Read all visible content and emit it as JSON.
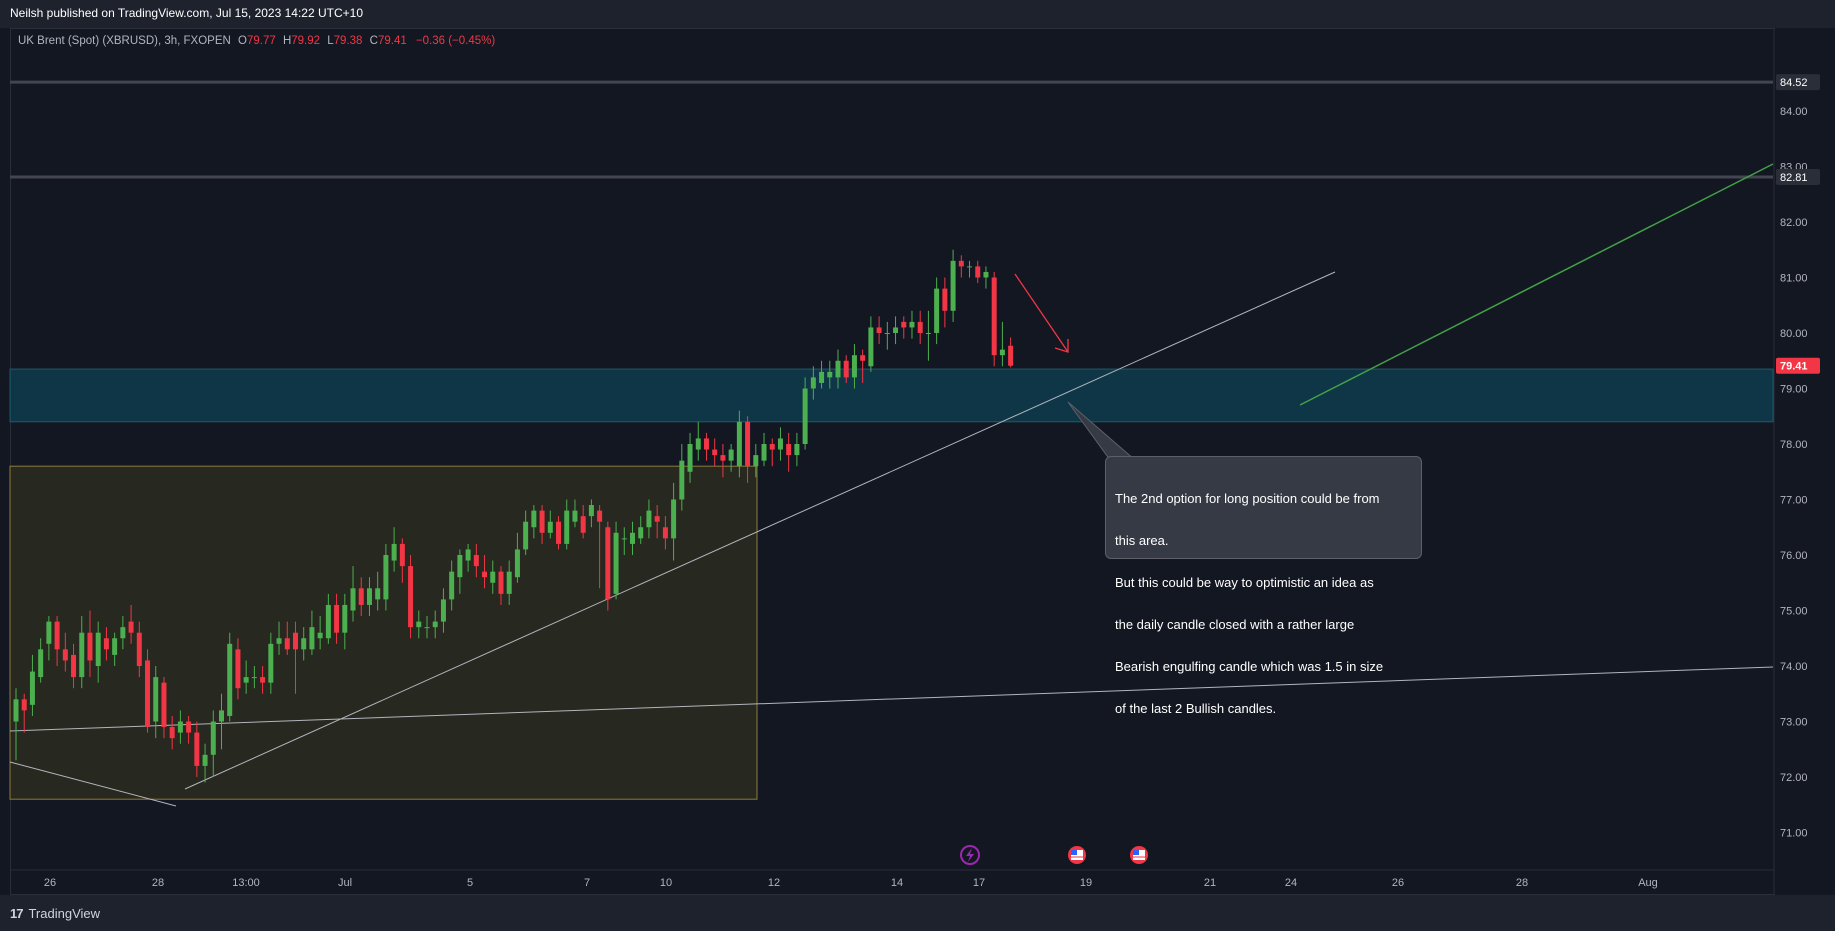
{
  "header": {
    "published": "Neilsh published on TradingView.com, Jul 15, 2023 14:22 UTC+10"
  },
  "symbol": {
    "name": "UK Brent (Spot) (XBRUSD), 3h, FXOPEN",
    "open_label": "O",
    "open": "79.77",
    "high_label": "H",
    "high": "79.92",
    "low_label": "L",
    "low": "79.38",
    "close_label": "C",
    "close": "79.41",
    "change": "−0.36 (−0.45%)"
  },
  "price_axis": {
    "ticks": [
      "84.00",
      "83.00",
      "82.00",
      "81.00",
      "80.00",
      "79.00",
      "78.00",
      "77.00",
      "76.00",
      "75.00",
      "74.00",
      "73.00",
      "72.00",
      "71.00"
    ],
    "levels": [
      {
        "label": "84.52",
        "color": "#787b86"
      },
      {
        "label": "82.81",
        "color": "#787b86"
      },
      {
        "label": "79.41",
        "color": "#f23645"
      }
    ]
  },
  "time_axis": {
    "ticks": [
      "26",
      "28",
      "13:00",
      "Jul",
      "5",
      "7",
      "10",
      "12",
      "14",
      "17",
      "19",
      "21",
      "24",
      "26",
      "28",
      "Aug"
    ]
  },
  "annotation": {
    "lines": [
      "The 2nd option for long position could be from",
      "this area.",
      "But this could be way to optimistic an idea as",
      "the daily candle closed with a rather large",
      "Bearish engulfing candle which was 1.5 in size",
      "of the last 2 Bullish candles."
    ]
  },
  "events": [
    {
      "icon": "lightning-icon",
      "color": "#9c27b0"
    },
    {
      "icon": "us-flag-icon",
      "color": "#f23645"
    },
    {
      "icon": "us-flag-icon",
      "color": "#f23645"
    }
  ],
  "footer": {
    "brand": "TradingView"
  },
  "chart_data": {
    "type": "candlestick",
    "timeframe": "3h",
    "y_range": [
      70.5,
      85.2
    ],
    "candle_colors": {
      "up": "#4caf50",
      "down": "#f23645"
    },
    "zones": [
      {
        "kind": "resistance",
        "from": 78.4,
        "to": 79.35,
        "color": "#0e3a4a"
      },
      {
        "kind": "range-box",
        "from": 71.6,
        "to": 77.6,
        "color": "#2a2a1f"
      }
    ],
    "horizontal_levels": [
      84.52,
      82.81
    ],
    "candles": [
      {
        "o": 73.0,
        "c": 73.4,
        "h": 73.6,
        "l": 72.3
      },
      {
        "o": 73.4,
        "c": 73.2,
        "h": 73.5,
        "l": 72.8
      },
      {
        "o": 73.3,
        "c": 73.9,
        "h": 74.2,
        "l": 73.1
      },
      {
        "o": 73.8,
        "c": 74.3,
        "h": 74.5,
        "l": 73.7
      },
      {
        "o": 74.4,
        "c": 74.8,
        "h": 74.9,
        "l": 74.1
      },
      {
        "o": 74.8,
        "c": 74.3,
        "h": 74.9,
        "l": 74.0
      },
      {
        "o": 74.3,
        "c": 74.1,
        "h": 74.6,
        "l": 73.9
      },
      {
        "o": 74.2,
        "c": 73.8,
        "h": 74.4,
        "l": 73.6
      },
      {
        "o": 73.8,
        "c": 74.6,
        "h": 74.9,
        "l": 73.6
      },
      {
        "o": 74.6,
        "c": 74.1,
        "h": 75.0,
        "l": 73.8
      },
      {
        "o": 74.0,
        "c": 74.6,
        "h": 74.8,
        "l": 73.7
      },
      {
        "o": 74.5,
        "c": 74.3,
        "h": 74.7,
        "l": 74.1
      },
      {
        "o": 74.2,
        "c": 74.5,
        "h": 74.6,
        "l": 74.0
      },
      {
        "o": 74.5,
        "c": 74.7,
        "h": 74.9,
        "l": 74.3
      },
      {
        "o": 74.8,
        "c": 74.6,
        "h": 75.1,
        "l": 74.4
      },
      {
        "o": 74.6,
        "c": 74.0,
        "h": 74.8,
        "l": 73.8
      },
      {
        "o": 74.1,
        "c": 72.9,
        "h": 74.3,
        "l": 72.8
      },
      {
        "o": 73.0,
        "c": 73.8,
        "h": 74.0,
        "l": 72.7
      },
      {
        "o": 73.7,
        "c": 72.9,
        "h": 73.8,
        "l": 72.7
      },
      {
        "o": 72.9,
        "c": 72.7,
        "h": 73.1,
        "l": 72.5
      },
      {
        "o": 72.8,
        "c": 73.0,
        "h": 73.2,
        "l": 72.6
      },
      {
        "o": 73.0,
        "c": 72.8,
        "h": 73.1,
        "l": 72.6
      },
      {
        "o": 72.8,
        "c": 72.2,
        "h": 73.0,
        "l": 72.0
      },
      {
        "o": 72.2,
        "c": 72.4,
        "h": 72.6,
        "l": 71.9
      },
      {
        "o": 72.4,
        "c": 73.0,
        "h": 73.2,
        "l": 72.0
      },
      {
        "o": 73.0,
        "c": 73.2,
        "h": 73.5,
        "l": 72.5
      },
      {
        "o": 73.1,
        "c": 74.4,
        "h": 74.6,
        "l": 73.0
      },
      {
        "o": 74.3,
        "c": 73.6,
        "h": 74.5,
        "l": 73.4
      },
      {
        "o": 73.7,
        "c": 73.8,
        "h": 74.1,
        "l": 73.5
      },
      {
        "o": 73.8,
        "c": 73.8,
        "h": 74.0,
        "l": 73.6
      },
      {
        "o": 73.8,
        "c": 73.7,
        "h": 74.0,
        "l": 73.5
      },
      {
        "o": 73.7,
        "c": 74.4,
        "h": 74.6,
        "l": 73.5
      },
      {
        "o": 74.4,
        "c": 74.5,
        "h": 74.8,
        "l": 74.2
      },
      {
        "o": 74.5,
        "c": 74.3,
        "h": 74.8,
        "l": 74.2
      },
      {
        "o": 74.6,
        "c": 74.3,
        "h": 74.8,
        "l": 73.5
      },
      {
        "o": 74.3,
        "c": 74.5,
        "h": 74.7,
        "l": 74.1
      },
      {
        "o": 74.3,
        "c": 74.7,
        "h": 75.0,
        "l": 74.2
      },
      {
        "o": 74.5,
        "c": 74.6,
        "h": 74.9,
        "l": 74.3
      },
      {
        "o": 74.5,
        "c": 75.1,
        "h": 75.3,
        "l": 74.4
      },
      {
        "o": 75.1,
        "c": 74.6,
        "h": 75.3,
        "l": 74.4
      },
      {
        "o": 74.6,
        "c": 75.1,
        "h": 75.3,
        "l": 74.3
      },
      {
        "o": 75.0,
        "c": 75.4,
        "h": 75.8,
        "l": 74.8
      },
      {
        "o": 75.4,
        "c": 75.1,
        "h": 75.6,
        "l": 74.9
      },
      {
        "o": 75.1,
        "c": 75.4,
        "h": 75.6,
        "l": 74.9
      },
      {
        "o": 75.2,
        "c": 75.4,
        "h": 75.7,
        "l": 75.0
      },
      {
        "o": 75.2,
        "c": 76.0,
        "h": 76.2,
        "l": 75.0
      },
      {
        "o": 75.9,
        "c": 76.2,
        "h": 76.5,
        "l": 75.7
      },
      {
        "o": 76.2,
        "c": 75.8,
        "h": 76.3,
        "l": 75.5
      },
      {
        "o": 75.8,
        "c": 74.7,
        "h": 76.0,
        "l": 74.5
      },
      {
        "o": 74.7,
        "c": 74.8,
        "h": 75.0,
        "l": 74.5
      },
      {
        "o": 74.7,
        "c": 74.7,
        "h": 74.9,
        "l": 74.5
      },
      {
        "o": 74.7,
        "c": 74.8,
        "h": 75.0,
        "l": 74.5
      },
      {
        "o": 74.8,
        "c": 75.2,
        "h": 75.4,
        "l": 74.6
      },
      {
        "o": 75.2,
        "c": 75.7,
        "h": 75.9,
        "l": 75.0
      },
      {
        "o": 75.6,
        "c": 76.0,
        "h": 76.1,
        "l": 75.3
      },
      {
        "o": 75.9,
        "c": 76.1,
        "h": 76.2,
        "l": 75.7
      },
      {
        "o": 76.0,
        "c": 75.8,
        "h": 76.2,
        "l": 75.6
      },
      {
        "o": 75.7,
        "c": 75.6,
        "h": 76.0,
        "l": 75.4
      },
      {
        "o": 75.5,
        "c": 75.7,
        "h": 75.9,
        "l": 75.3
      },
      {
        "o": 75.7,
        "c": 75.3,
        "h": 75.8,
        "l": 75.1
      },
      {
        "o": 75.3,
        "c": 75.7,
        "h": 75.9,
        "l": 75.1
      },
      {
        "o": 75.6,
        "c": 76.1,
        "h": 76.4,
        "l": 75.5
      },
      {
        "o": 76.1,
        "c": 76.6,
        "h": 76.8,
        "l": 76.0
      },
      {
        "o": 76.5,
        "c": 76.8,
        "h": 76.9,
        "l": 76.3
      },
      {
        "o": 76.8,
        "c": 76.4,
        "h": 76.9,
        "l": 76.2
      },
      {
        "o": 76.4,
        "c": 76.6,
        "h": 76.8,
        "l": 76.3
      },
      {
        "o": 76.6,
        "c": 76.2,
        "h": 76.7,
        "l": 76.1
      },
      {
        "o": 76.2,
        "c": 76.8,
        "h": 77.0,
        "l": 76.1
      },
      {
        "o": 76.6,
        "c": 76.8,
        "h": 77.0,
        "l": 76.5
      },
      {
        "o": 76.7,
        "c": 76.4,
        "h": 76.9,
        "l": 76.3
      },
      {
        "o": 76.7,
        "c": 76.9,
        "h": 77.0,
        "l": 76.5
      },
      {
        "o": 76.8,
        "c": 76.6,
        "h": 76.9,
        "l": 75.4
      },
      {
        "o": 76.5,
        "c": 75.2,
        "h": 76.6,
        "l": 75.0
      },
      {
        "o": 75.3,
        "c": 76.4,
        "h": 76.6,
        "l": 75.2
      },
      {
        "o": 76.3,
        "c": 76.3,
        "h": 76.5,
        "l": 76.0
      },
      {
        "o": 76.2,
        "c": 76.4,
        "h": 76.6,
        "l": 76.0
      },
      {
        "o": 76.3,
        "c": 76.5,
        "h": 76.7,
        "l": 76.2
      },
      {
        "o": 76.5,
        "c": 76.8,
        "h": 77.0,
        "l": 76.3
      },
      {
        "o": 76.7,
        "c": 76.6,
        "h": 76.9,
        "l": 76.3
      },
      {
        "o": 76.5,
        "c": 76.3,
        "h": 76.7,
        "l": 76.1
      },
      {
        "o": 76.3,
        "c": 77.0,
        "h": 77.3,
        "l": 75.9
      },
      {
        "o": 77.0,
        "c": 77.7,
        "h": 78.0,
        "l": 76.8
      },
      {
        "o": 77.5,
        "c": 78.0,
        "h": 78.2,
        "l": 77.3
      },
      {
        "o": 77.9,
        "c": 78.1,
        "h": 78.4,
        "l": 77.7
      },
      {
        "o": 78.1,
        "c": 77.9,
        "h": 78.2,
        "l": 77.7
      },
      {
        "o": 77.9,
        "c": 77.8,
        "h": 78.1,
        "l": 77.6
      },
      {
        "o": 77.8,
        "c": 77.7,
        "h": 78.0,
        "l": 77.4
      },
      {
        "o": 77.7,
        "c": 77.9,
        "h": 78.0,
        "l": 77.5
      },
      {
        "o": 77.6,
        "c": 78.4,
        "h": 78.6,
        "l": 77.4
      },
      {
        "o": 78.4,
        "c": 77.6,
        "h": 78.5,
        "l": 77.3
      },
      {
        "o": 77.6,
        "c": 77.8,
        "h": 78.0,
        "l": 77.4
      },
      {
        "o": 77.7,
        "c": 78.0,
        "h": 78.2,
        "l": 77.6
      },
      {
        "o": 78.0,
        "c": 77.9,
        "h": 78.1,
        "l": 77.6
      },
      {
        "o": 77.9,
        "c": 78.1,
        "h": 78.3,
        "l": 77.7
      },
      {
        "o": 78.0,
        "c": 77.8,
        "h": 78.2,
        "l": 77.5
      },
      {
        "o": 77.8,
        "c": 78.0,
        "h": 78.2,
        "l": 77.6
      },
      {
        "o": 78.0,
        "c": 79.0,
        "h": 79.2,
        "l": 77.9
      },
      {
        "o": 79.0,
        "c": 79.2,
        "h": 79.4,
        "l": 78.8
      },
      {
        "o": 79.1,
        "c": 79.3,
        "h": 79.5,
        "l": 79.0
      },
      {
        "o": 79.2,
        "c": 79.3,
        "h": 79.5,
        "l": 79.0
      },
      {
        "o": 79.2,
        "c": 79.5,
        "h": 79.7,
        "l": 79.0
      },
      {
        "o": 79.5,
        "c": 79.2,
        "h": 79.6,
        "l": 79.1
      },
      {
        "o": 79.2,
        "c": 79.6,
        "h": 79.8,
        "l": 79.0
      },
      {
        "o": 79.6,
        "c": 79.5,
        "h": 79.7,
        "l": 79.1
      },
      {
        "o": 79.4,
        "c": 80.1,
        "h": 80.3,
        "l": 79.3
      },
      {
        "o": 80.1,
        "c": 80.0,
        "h": 80.3,
        "l": 79.8
      },
      {
        "o": 80.0,
        "c": 80.0,
        "h": 80.2,
        "l": 79.7
      },
      {
        "o": 80.0,
        "c": 80.1,
        "h": 80.3,
        "l": 79.8
      },
      {
        "o": 80.2,
        "c": 80.1,
        "h": 80.3,
        "l": 79.9
      },
      {
        "o": 80.1,
        "c": 80.2,
        "h": 80.4,
        "l": 79.9
      },
      {
        "o": 80.2,
        "c": 80.0,
        "h": 80.4,
        "l": 79.8
      },
      {
        "o": 80.0,
        "c": 80.0,
        "h": 80.4,
        "l": 79.5
      },
      {
        "o": 80.0,
        "c": 80.8,
        "h": 81.0,
        "l": 79.8
      },
      {
        "o": 80.8,
        "c": 80.4,
        "h": 81.0,
        "l": 80.1
      },
      {
        "o": 80.4,
        "c": 81.3,
        "h": 81.5,
        "l": 80.2
      },
      {
        "o": 81.3,
        "c": 81.2,
        "h": 81.4,
        "l": 81.0
      },
      {
        "o": 81.2,
        "c": 81.2,
        "h": 81.3,
        "l": 81.0
      },
      {
        "o": 81.2,
        "c": 81.0,
        "h": 81.3,
        "l": 80.9
      },
      {
        "o": 81.0,
        "c": 81.1,
        "h": 81.2,
        "l": 80.8
      },
      {
        "o": 81.0,
        "c": 79.6,
        "h": 81.1,
        "l": 79.4
      },
      {
        "o": 79.6,
        "c": 79.7,
        "h": 80.2,
        "l": 79.4
      },
      {
        "o": 79.77,
        "c": 79.41,
        "h": 79.92,
        "l": 79.38
      }
    ]
  }
}
